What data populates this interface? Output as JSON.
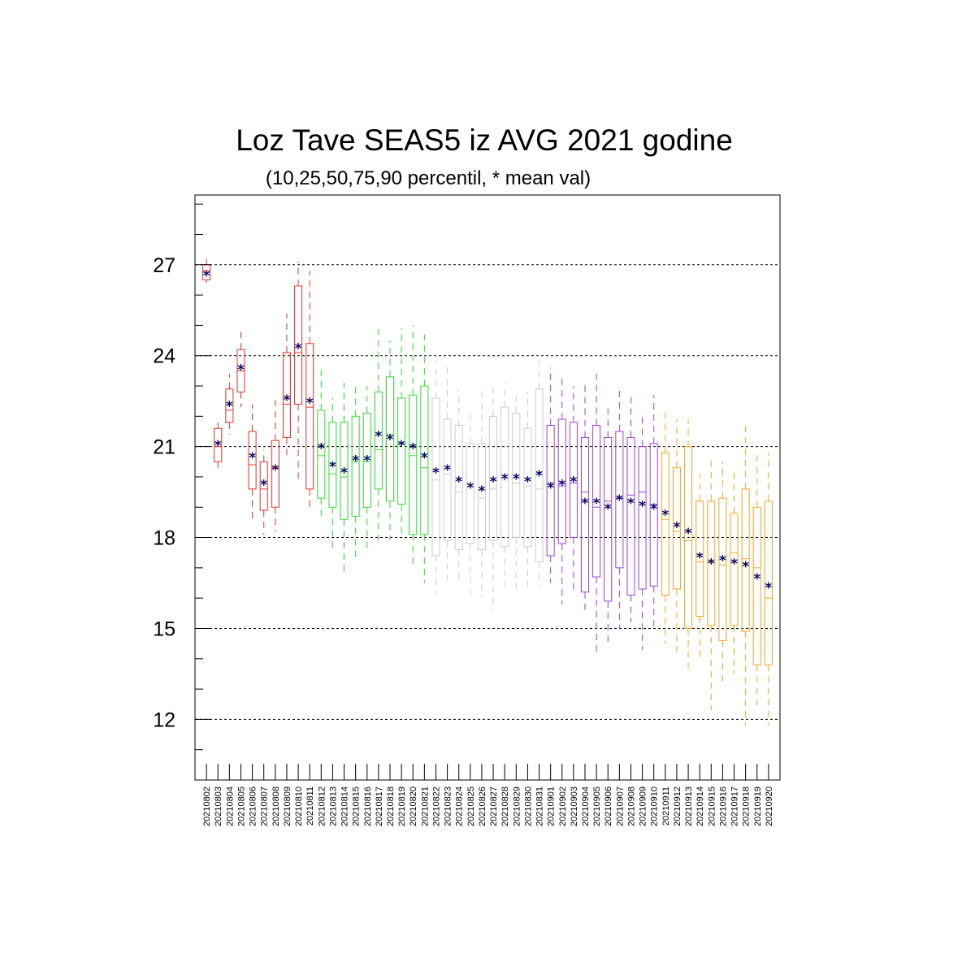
{
  "chart_data": {
    "type": "box",
    "title": "Loz Tave SEAS5 iz AVG 2021 godine",
    "subtitle": "(10,25,50,75,90 percentil, * mean val)",
    "xlabel": "",
    "ylabel": "",
    "ylim": [
      10.0,
      29.3
    ],
    "yticks": [
      12,
      15,
      18,
      21,
      24,
      27
    ],
    "ytick_labels": [
      "12",
      "15",
      "18",
      "21",
      "24",
      "27"
    ],
    "grid": "horizontal dashed at major ticks",
    "colors": {
      "red": "#e8342c",
      "green": "#33dd33",
      "grey": "#cccccc",
      "purple": "#a040e0",
      "orange": "#f5a623",
      "mean_marker": "#000066"
    },
    "mean_marker": "*",
    "boxes": [
      {
        "date": "20210802",
        "p10": 26.4,
        "p25": 26.5,
        "p50": 26.8,
        "p75": 27.0,
        "p90": 27.2,
        "mean": 26.7,
        "color": "red"
      },
      {
        "date": "20210803",
        "p10": 20.3,
        "p25": 20.5,
        "p50": 21.0,
        "p75": 21.6,
        "p90": 21.8,
        "mean": 21.1,
        "color": "red"
      },
      {
        "date": "20210804",
        "p10": 21.4,
        "p25": 21.8,
        "p50": 22.2,
        "p75": 22.9,
        "p90": 23.4,
        "mean": 22.4,
        "color": "red"
      },
      {
        "date": "20210805",
        "p10": 22.3,
        "p25": 22.8,
        "p50": 23.5,
        "p75": 24.2,
        "p90": 24.8,
        "mean": 23.6,
        "color": "red"
      },
      {
        "date": "20210806",
        "p10": 18.6,
        "p25": 19.6,
        "p50": 20.4,
        "p75": 21.5,
        "p90": 22.4,
        "mean": 20.7,
        "color": "red"
      },
      {
        "date": "20210807",
        "p10": 18.1,
        "p25": 18.9,
        "p50": 19.6,
        "p75": 20.5,
        "p90": 20.9,
        "mean": 19.8,
        "color": "red"
      },
      {
        "date": "20210808",
        "p10": 18.2,
        "p25": 19.0,
        "p50": 20.3,
        "p75": 21.2,
        "p90": 22.7,
        "mean": 20.3,
        "color": "red"
      },
      {
        "date": "20210809",
        "p10": 20.6,
        "p25": 21.3,
        "p50": 22.4,
        "p75": 24.1,
        "p90": 25.4,
        "mean": 22.6,
        "color": "red"
      },
      {
        "date": "20210810",
        "p10": 19.9,
        "p25": 22.4,
        "p50": 24.1,
        "p75": 26.3,
        "p90": 27.1,
        "mean": 24.3,
        "color": "red"
      },
      {
        "date": "20210811",
        "p10": 19.0,
        "p25": 19.6,
        "p50": 22.3,
        "p75": 24.4,
        "p90": 26.8,
        "mean": 22.5,
        "color": "red"
      },
      {
        "date": "20210812",
        "p10": 18.6,
        "p25": 19.3,
        "p50": 20.7,
        "p75": 22.2,
        "p90": 23.6,
        "mean": 21.0,
        "color": "green"
      },
      {
        "date": "20210813",
        "p10": 17.5,
        "p25": 19.0,
        "p50": 20.1,
        "p75": 21.8,
        "p90": 22.6,
        "mean": 20.4,
        "color": "green"
      },
      {
        "date": "20210814",
        "p10": 16.8,
        "p25": 18.6,
        "p50": 20.0,
        "p75": 21.8,
        "p90": 23.1,
        "mean": 20.2,
        "color": "green"
      },
      {
        "date": "20210815",
        "p10": 17.2,
        "p25": 18.7,
        "p50": 20.5,
        "p75": 22.0,
        "p90": 23.1,
        "mean": 20.6,
        "color": "green"
      },
      {
        "date": "20210816",
        "p10": 17.5,
        "p25": 19.0,
        "p50": 20.5,
        "p75": 22.1,
        "p90": 23.0,
        "mean": 20.6,
        "color": "green"
      },
      {
        "date": "20210817",
        "p10": 17.9,
        "p25": 19.6,
        "p50": 20.9,
        "p75": 22.8,
        "p90": 24.9,
        "mean": 21.4,
        "color": "green"
      },
      {
        "date": "20210818",
        "p10": 17.9,
        "p25": 19.2,
        "p50": 21.4,
        "p75": 23.3,
        "p90": 24.5,
        "mean": 21.3,
        "color": "green"
      },
      {
        "date": "20210819",
        "p10": 18.0,
        "p25": 19.1,
        "p50": 21.1,
        "p75": 22.6,
        "p90": 24.9,
        "mean": 21.1,
        "color": "green"
      },
      {
        "date": "20210820",
        "p10": 17.0,
        "p25": 18.1,
        "p50": 20.7,
        "p75": 22.7,
        "p90": 25.0,
        "mean": 21.0,
        "color": "green"
      },
      {
        "date": "20210821",
        "p10": 16.5,
        "p25": 18.1,
        "p50": 20.3,
        "p75": 23.0,
        "p90": 24.7,
        "mean": 20.7,
        "color": "green"
      },
      {
        "date": "20210822",
        "p10": 16.1,
        "p25": 17.4,
        "p50": 19.9,
        "p75": 22.6,
        "p90": 23.8,
        "mean": 20.2,
        "color": "grey"
      },
      {
        "date": "20210823",
        "p10": 16.4,
        "p25": 17.9,
        "p50": 20.1,
        "p75": 21.9,
        "p90": 23.7,
        "mean": 20.3,
        "color": "grey"
      },
      {
        "date": "20210824",
        "p10": 16.6,
        "p25": 17.6,
        "p50": 19.5,
        "p75": 21.7,
        "p90": 22.9,
        "mean": 19.9,
        "color": "grey"
      },
      {
        "date": "20210825",
        "p10": 16.0,
        "p25": 17.8,
        "p50": 19.8,
        "p75": 21.1,
        "p90": 22.2,
        "mean": 19.7,
        "color": "grey"
      },
      {
        "date": "20210826",
        "p10": 16.0,
        "p25": 17.6,
        "p50": 19.3,
        "p75": 21.1,
        "p90": 22.9,
        "mean": 19.6,
        "color": "grey"
      },
      {
        "date": "20210827",
        "p10": 15.6,
        "p25": 17.9,
        "p50": 19.6,
        "p75": 22.0,
        "p90": 23.0,
        "mean": 19.9,
        "color": "grey"
      },
      {
        "date": "20210828",
        "p10": 16.3,
        "p25": 17.7,
        "p50": 19.9,
        "p75": 22.3,
        "p90": 23.1,
        "mean": 20.0,
        "color": "grey"
      },
      {
        "date": "20210829",
        "p10": 16.3,
        "p25": 18.0,
        "p50": 19.8,
        "p75": 22.1,
        "p90": 22.8,
        "mean": 20.0,
        "color": "grey"
      },
      {
        "date": "20210830",
        "p10": 16.2,
        "p25": 17.7,
        "p50": 19.7,
        "p75": 21.6,
        "p90": 22.8,
        "mean": 19.9,
        "color": "grey"
      },
      {
        "date": "20210831",
        "p10": 16.4,
        "p25": 17.2,
        "p50": 19.6,
        "p75": 22.9,
        "p90": 23.9,
        "mean": 20.1,
        "color": "grey"
      },
      {
        "date": "20210901",
        "p10": 16.5,
        "p25": 17.4,
        "p50": 19.8,
        "p75": 21.7,
        "p90": 23.6,
        "mean": 19.7,
        "color": "purple"
      },
      {
        "date": "20210902",
        "p10": 15.8,
        "p25": 17.8,
        "p50": 19.7,
        "p75": 21.9,
        "p90": 23.3,
        "mean": 19.8,
        "color": "purple"
      },
      {
        "date": "20210903",
        "p10": 16.2,
        "p25": 18.0,
        "p50": 19.8,
        "p75": 21.8,
        "p90": 23.0,
        "mean": 19.9,
        "color": "purple"
      },
      {
        "date": "20210904",
        "p10": 15.5,
        "p25": 16.2,
        "p50": 19.5,
        "p75": 21.3,
        "p90": 23.1,
        "mean": 19.2,
        "color": "purple"
      },
      {
        "date": "20210905",
        "p10": 14.2,
        "p25": 16.7,
        "p50": 19.0,
        "p75": 21.7,
        "p90": 23.4,
        "mean": 19.2,
        "color": "purple"
      },
      {
        "date": "20210906",
        "p10": 14.5,
        "p25": 15.9,
        "p50": 19.2,
        "p75": 21.3,
        "p90": 22.3,
        "mean": 19.0,
        "color": "purple"
      },
      {
        "date": "20210907",
        "p10": 15.0,
        "p25": 17.0,
        "p50": 19.3,
        "p75": 21.5,
        "p90": 22.9,
        "mean": 19.3,
        "color": "purple"
      },
      {
        "date": "20210908",
        "p10": 15.2,
        "p25": 16.1,
        "p50": 19.4,
        "p75": 21.3,
        "p90": 22.8,
        "mean": 19.2,
        "color": "purple"
      },
      {
        "date": "20210909",
        "p10": 14.3,
        "p25": 16.3,
        "p50": 19.5,
        "p75": 21.0,
        "p90": 22.1,
        "mean": 19.1,
        "color": "purple"
      },
      {
        "date": "20210910",
        "p10": 15.0,
        "p25": 16.4,
        "p50": 19.1,
        "p75": 21.1,
        "p90": 22.7,
        "mean": 19.0,
        "color": "purple"
      },
      {
        "date": "20210911",
        "p10": 14.5,
        "p25": 16.1,
        "p50": 18.6,
        "p75": 20.8,
        "p90": 22.2,
        "mean": 18.8,
        "color": "orange"
      },
      {
        "date": "20210912",
        "p10": 14.2,
        "p25": 16.3,
        "p50": 18.2,
        "p75": 20.3,
        "p90": 21.9,
        "mean": 18.4,
        "color": "orange"
      },
      {
        "date": "20210913",
        "p10": 13.6,
        "p25": 15.0,
        "p50": 17.9,
        "p75": 21.0,
        "p90": 21.9,
        "mean": 18.2,
        "color": "orange"
      },
      {
        "date": "20210914",
        "p10": 14.0,
        "p25": 15.4,
        "p50": 17.2,
        "p75": 19.2,
        "p90": 20.1,
        "mean": 17.4,
        "color": "orange"
      },
      {
        "date": "20210915",
        "p10": 12.3,
        "p25": 15.1,
        "p50": 17.2,
        "p75": 19.2,
        "p90": 20.7,
        "mean": 17.2,
        "color": "orange"
      },
      {
        "date": "20210916",
        "p10": 13.1,
        "p25": 14.6,
        "p50": 17.1,
        "p75": 19.3,
        "p90": 20.5,
        "mean": 17.3,
        "color": "orange"
      },
      {
        "date": "20210917",
        "p10": 13.5,
        "p25": 15.1,
        "p50": 17.5,
        "p75": 18.8,
        "p90": 20.3,
        "mean": 17.2,
        "color": "orange"
      },
      {
        "date": "20210918",
        "p10": 11.8,
        "p25": 14.9,
        "p50": 17.3,
        "p75": 19.6,
        "p90": 21.8,
        "mean": 17.1,
        "color": "orange"
      },
      {
        "date": "20210919",
        "p10": 12.3,
        "p25": 13.8,
        "p50": 17.0,
        "p75": 19.0,
        "p90": 20.8,
        "mean": 16.7,
        "color": "orange"
      },
      {
        "date": "20210920",
        "p10": 11.8,
        "p25": 13.8,
        "p50": 16.0,
        "p75": 19.2,
        "p90": 20.8,
        "mean": 16.4,
        "color": "orange"
      }
    ]
  }
}
